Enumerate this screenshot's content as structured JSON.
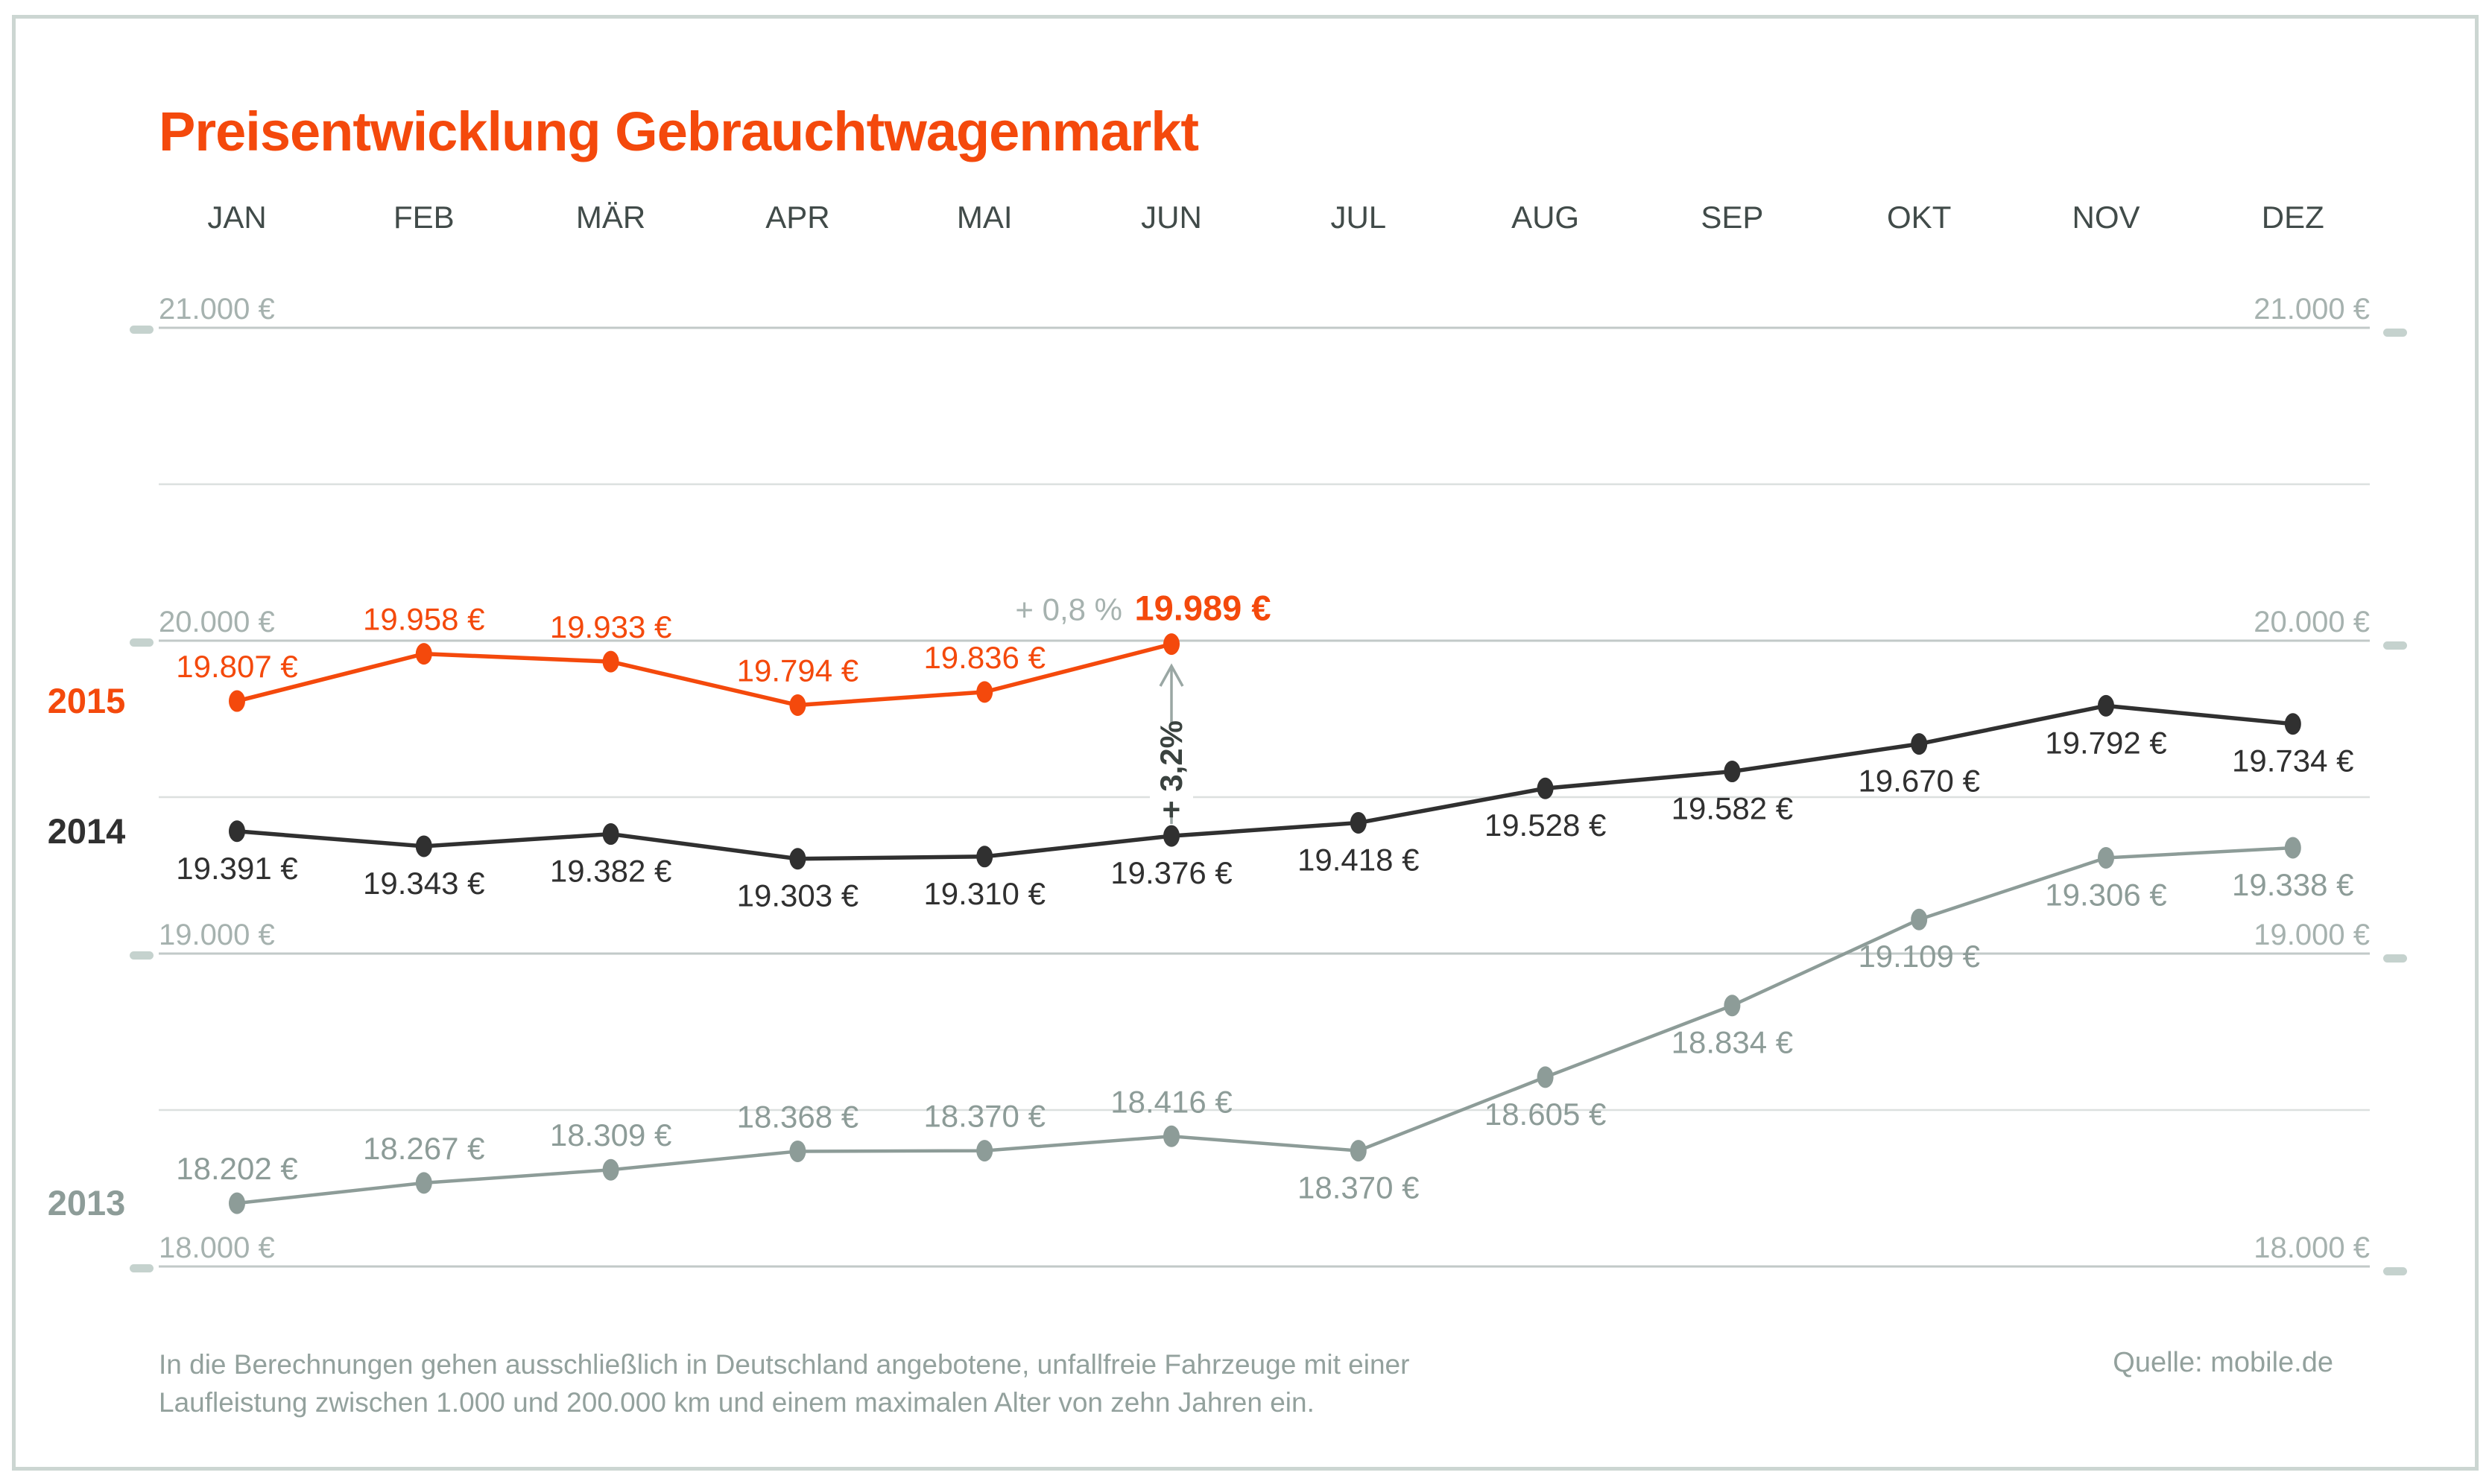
{
  "title": "Preisentwicklung Gebrauchtwagenmarkt",
  "source": "Quelle: mobile.de",
  "footnote": {
    "line1": "In die Berechnungen gehen ausschließlich in Deutschland angebotene, unfallfreie Fahrzeuge mit einer",
    "line2": "Laufleistung zwischen 1.000 und 200.000 km und einem maximalen Alter von zehn Jahren ein."
  },
  "colors": {
    "accent_orange": "#f4490c",
    "series_2014": "#303030",
    "series_2013": "#8d9c98",
    "grid_major": "#c2c9c8",
    "grid_minor": "#dce0df",
    "axis_text": "#a6b2af",
    "month_text": "#414b49",
    "arrow": "#9aa7a4",
    "annotation_dark": "#3a423f"
  },
  "chart_data": {
    "type": "line",
    "title": "Preisentwicklung Gebrauchtwagenmarkt",
    "categories": [
      "JAN",
      "FEB",
      "MÄR",
      "APR",
      "MAI",
      "JUN",
      "JUL",
      "AUG",
      "SEP",
      "OKT",
      "NOV",
      "DEZ"
    ],
    "unit": "€",
    "ylim": [
      18000,
      21000
    ],
    "gridline_step_eur": 500,
    "grid": "on",
    "legend_position": "left-of-series-start",
    "y_axis_labels": [
      {
        "value": 21000,
        "label": "21.000 €"
      },
      {
        "value": 20000,
        "label": "20.000 €"
      },
      {
        "value": 19000,
        "label": "19.000 €"
      },
      {
        "value": 18000,
        "label": "18.000 €"
      }
    ],
    "series": [
      {
        "name": "2015",
        "color": "#f4490c",
        "values": [
          19807,
          19958,
          19933,
          19794,
          19836,
          19989
        ],
        "labels": [
          "19.807 €",
          "19.958 €",
          "19.933 €",
          "19.794 €",
          "19.836 €",
          "19.989 €"
        ],
        "label_placement": "above",
        "highlight_last": true
      },
      {
        "name": "2014",
        "color": "#303030",
        "values": [
          19391,
          19343,
          19382,
          19303,
          19310,
          19376,
          19418,
          19528,
          19582,
          19670,
          19792,
          19734
        ],
        "labels": [
          "19.391 €",
          "19.343 €",
          "19.382 €",
          "19.303 €",
          "19.310 €",
          "19.376 €",
          "19.418 €",
          "19.528 €",
          "19.582 €",
          "19.670 €",
          "19.792 €",
          "19.734 €"
        ],
        "label_placement": "below",
        "highlight_last": false
      },
      {
        "name": "2013",
        "color": "#8d9c98",
        "values": [
          18202,
          18267,
          18309,
          18368,
          18370,
          18416,
          18370,
          18605,
          18834,
          19109,
          19306,
          19338
        ],
        "labels": [
          "18.202 €",
          "18.267 €",
          "18.309 €",
          "18.368 €",
          "18.370 €",
          "18.416 €",
          "18.370 €",
          "18.605 €",
          "18.834 €",
          "19.109 €",
          "19.306 €",
          "19.338 €"
        ],
        "label_placement": "above-then-below",
        "highlight_last": false
      }
    ],
    "annotations": {
      "month_change_label": "+ 0,8 %",
      "year_change_label": "+ 3,2%",
      "year_change_month": "JUN"
    }
  }
}
